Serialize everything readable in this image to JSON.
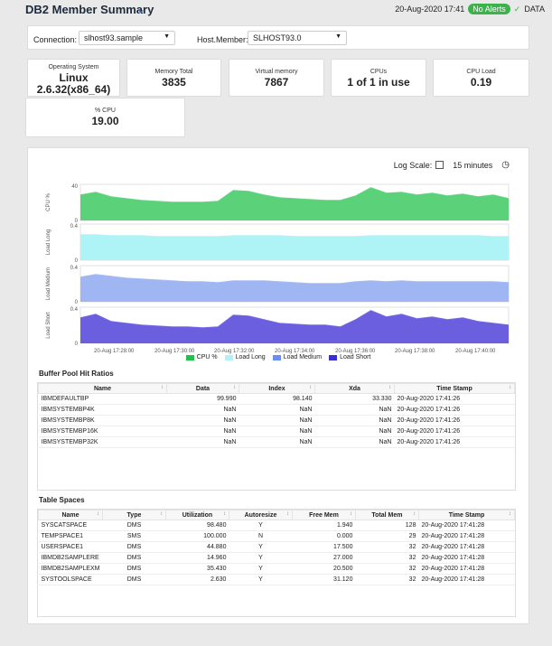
{
  "header": {
    "title": "DB2 Member Summary",
    "timestamp": "20-Aug-2020 17:41",
    "alert_badge": "No Alerts",
    "data_label": "DATA"
  },
  "filters": {
    "connection_label": "Connection:",
    "connection_value": "slhost93.sample",
    "host_member_label": "Host.Member:",
    "host_member_value": "SLHOST93.0"
  },
  "kpis": [
    {
      "label": "Operating System",
      "value_line1": "Linux",
      "value_line2": "2.6.32(x86_64)"
    },
    {
      "label": "Memory Total",
      "value": "3835"
    },
    {
      "label": "Virtual memory",
      "value": "7867"
    },
    {
      "label": "CPUs",
      "value": "1 of 1 in use"
    },
    {
      "label": "CPU Load",
      "value": "0.19"
    },
    {
      "label": "% CPU",
      "value": "19.00"
    }
  ],
  "chart_controls": {
    "log_scale_label": "Log Scale:",
    "time_range": "15 minutes"
  },
  "chart_data": {
    "type": "area",
    "x": [
      "17:27:00",
      "17:27:30",
      "17:28:00",
      "17:28:30",
      "17:29:00",
      "17:29:30",
      "17:30:00",
      "17:30:30",
      "17:31:00",
      "17:31:30",
      "17:32:00",
      "17:32:30",
      "17:33:00",
      "17:33:30",
      "17:34:00",
      "17:34:30",
      "17:35:00",
      "17:35:30",
      "17:36:00",
      "17:36:30",
      "17:37:00",
      "17:37:30",
      "17:38:00",
      "17:38:30",
      "17:39:00",
      "17:39:30",
      "17:40:00",
      "17:40:30",
      "17:41:00"
    ],
    "x_tick_labels": [
      "20-Aug 17:28:00",
      "20-Aug 17:30:00",
      "20-Aug 17:32:00",
      "20-Aug 17:34:00",
      "20-Aug 17:36:00",
      "20-Aug 17:38:00",
      "20-Aug 17:40:00"
    ],
    "panels": [
      {
        "name": "CPU %",
        "color": "#5bd27a",
        "ylim": [
          0,
          40
        ],
        "y_ticks": [
          "40",
          "0"
        ],
        "values": [
          28,
          31,
          26,
          24,
          22,
          21,
          20,
          20,
          20,
          21,
          33,
          32,
          28,
          25,
          24,
          23,
          22,
          22,
          27,
          36,
          30,
          31,
          28,
          30,
          27,
          29,
          26,
          28,
          24
        ]
      },
      {
        "name": "Load Long",
        "color": "#aef3f5",
        "ylim": [
          0,
          0.4
        ],
        "y_ticks": [
          "0.4",
          "0"
        ],
        "values": [
          0.28,
          0.28,
          0.27,
          0.27,
          0.27,
          0.26,
          0.26,
          0.26,
          0.26,
          0.26,
          0.27,
          0.27,
          0.27,
          0.27,
          0.26,
          0.26,
          0.26,
          0.26,
          0.26,
          0.27,
          0.27,
          0.27,
          0.27,
          0.27,
          0.27,
          0.27,
          0.27,
          0.26,
          0.26
        ]
      },
      {
        "name": "Load Medium",
        "color": "#9fb6f3",
        "ylim": [
          0,
          0.4
        ],
        "y_ticks": [
          "0.4",
          "0"
        ],
        "values": [
          0.27,
          0.3,
          0.28,
          0.26,
          0.25,
          0.24,
          0.23,
          0.22,
          0.22,
          0.21,
          0.23,
          0.23,
          0.23,
          0.22,
          0.21,
          0.2,
          0.2,
          0.2,
          0.22,
          0.23,
          0.22,
          0.23,
          0.22,
          0.22,
          0.22,
          0.22,
          0.22,
          0.22,
          0.21
        ]
      },
      {
        "name": "Load Short",
        "color": "#6b5fe0",
        "ylim": [
          0,
          0.4
        ],
        "y_ticks": [
          "0.4",
          "0"
        ],
        "values": [
          0.28,
          0.32,
          0.24,
          0.22,
          0.2,
          0.19,
          0.18,
          0.18,
          0.17,
          0.18,
          0.31,
          0.3,
          0.26,
          0.22,
          0.21,
          0.2,
          0.2,
          0.18,
          0.26,
          0.36,
          0.29,
          0.32,
          0.27,
          0.29,
          0.26,
          0.28,
          0.24,
          0.22,
          0.2
        ]
      }
    ],
    "legend": [
      {
        "name": "CPU %",
        "color": "#22c24a"
      },
      {
        "name": "Load Long",
        "color": "#aef3f5"
      },
      {
        "name": "Load Medium",
        "color": "#6b8ef0"
      },
      {
        "name": "Load Short",
        "color": "#3a2fd0"
      }
    ]
  },
  "buffer_pool": {
    "title": "Buffer Pool Hit Ratios",
    "columns": [
      "Name",
      "Data",
      "Index",
      "Xda",
      "Time Stamp"
    ],
    "rows": [
      [
        "IBMDEFAULTBP",
        "99.990",
        "98.140",
        "33.330",
        "20-Aug-2020 17:41:26"
      ],
      [
        "IBMSYSTEMBP4K",
        "NaN",
        "NaN",
        "NaN",
        "20-Aug-2020 17:41:26"
      ],
      [
        "IBMSYSTEMBP8K",
        "NaN",
        "NaN",
        "NaN",
        "20-Aug-2020 17:41:26"
      ],
      [
        "IBMSYSTEMBP16K",
        "NaN",
        "NaN",
        "NaN",
        "20-Aug-2020 17:41:26"
      ],
      [
        "IBMSYSTEMBP32K",
        "NaN",
        "NaN",
        "NaN",
        "20-Aug-2020 17:41:26"
      ]
    ]
  },
  "table_spaces": {
    "title": "Table Spaces",
    "columns": [
      "Name",
      "Type",
      "Utilization",
      "Autoresize",
      "Free Mem",
      "Total Mem",
      "Time Stamp"
    ],
    "rows": [
      [
        "SYSCATSPACE",
        "DMS",
        "98.480",
        "Y",
        "1.940",
        "128",
        "20-Aug-2020 17:41:28"
      ],
      [
        "TEMPSPACE1",
        "SMS",
        "100.000",
        "N",
        "0.000",
        "29",
        "20-Aug-2020 17:41:28"
      ],
      [
        "USERSPACE1",
        "DMS",
        "44.880",
        "Y",
        "17.500",
        "32",
        "20-Aug-2020 17:41:28"
      ],
      [
        "IBMDB2SAMPLERE",
        "DMS",
        "14.960",
        "Y",
        "27.000",
        "32",
        "20-Aug-2020 17:41:28"
      ],
      [
        "IBMDB2SAMPLEXM",
        "DMS",
        "35.430",
        "Y",
        "20.500",
        "32",
        "20-Aug-2020 17:41:28"
      ],
      [
        "SYSTOOLSPACE",
        "DMS",
        "2.630",
        "Y",
        "31.120",
        "32",
        "20-Aug-2020 17:41:28"
      ]
    ]
  }
}
